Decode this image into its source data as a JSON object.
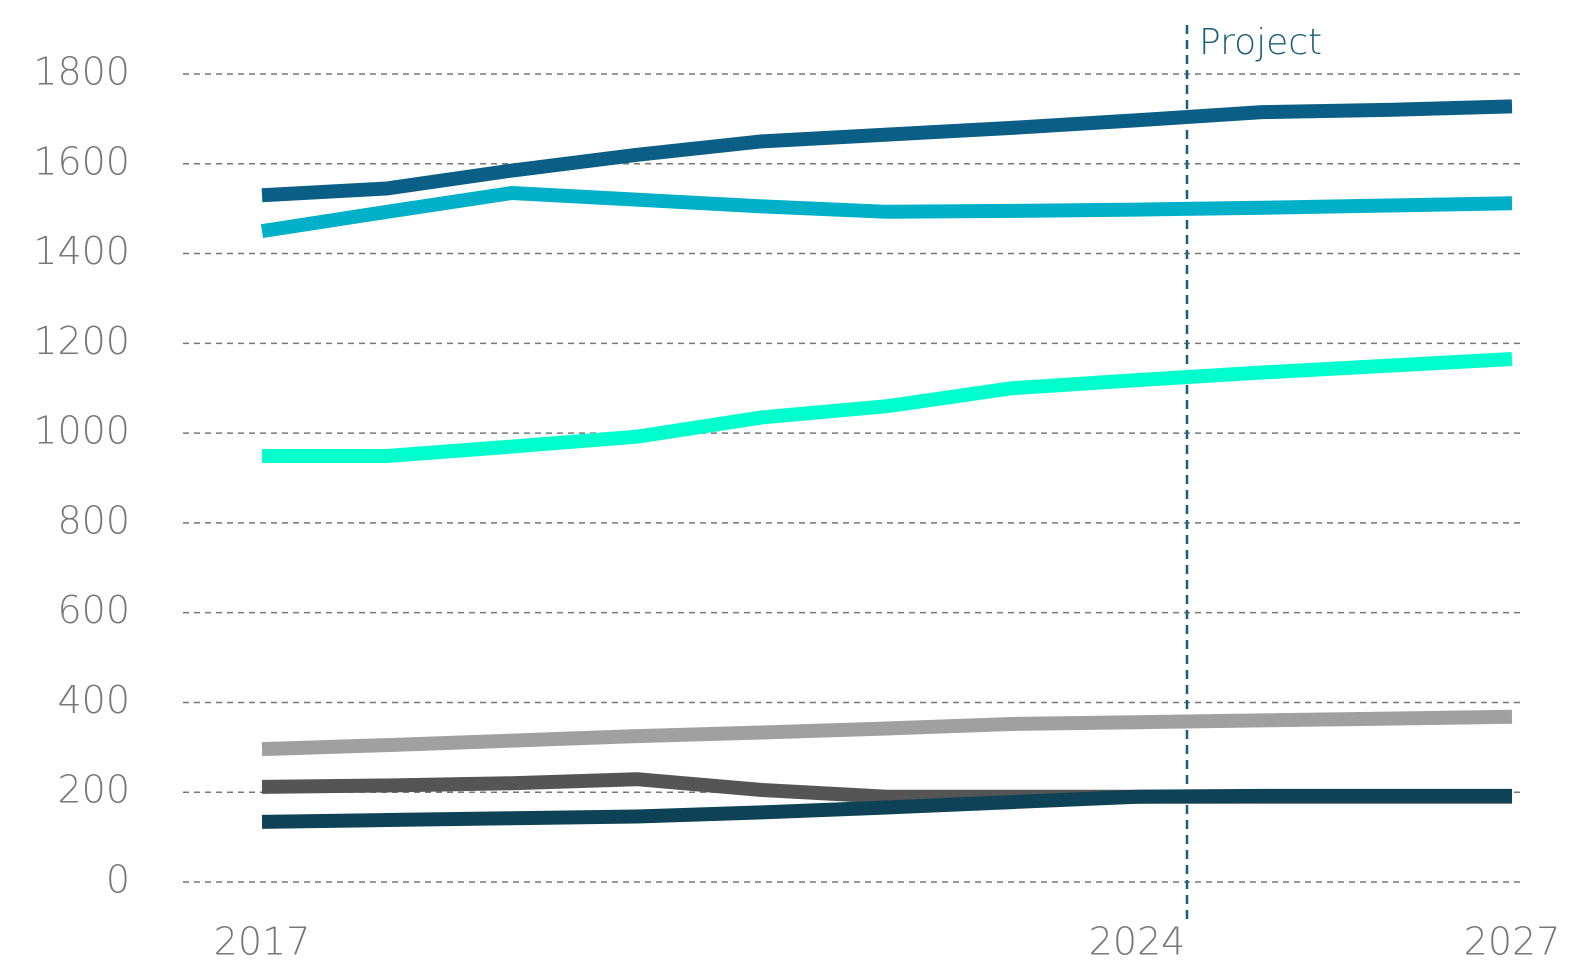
{
  "chart_data": {
    "type": "line",
    "x": [
      2017,
      2018,
      2019,
      2020,
      2021,
      2022,
      2023,
      2024,
      2025,
      2026,
      2027
    ],
    "xlim": [
      2017,
      2027
    ],
    "xticks": [
      2017,
      2024,
      2027
    ],
    "ylim": [
      0,
      1800
    ],
    "yticks": [
      0,
      200,
      400,
      600,
      800,
      1000,
      1200,
      1400,
      1600,
      1800
    ],
    "grid": true,
    "annotations": [
      {
        "text": "Project",
        "x": 2024.4
      }
    ],
    "series": [
      {
        "color": "#0b5e85",
        "values": [
          1530,
          1545,
          1585,
          1620,
          1650,
          1665,
          1680,
          1697,
          1715,
          1720,
          1728
        ]
      },
      {
        "color": "#00b0c8",
        "values": [
          1450,
          1493,
          1535,
          1520,
          1505,
          1493,
          1495,
          1498,
          1502,
          1507,
          1512
        ]
      },
      {
        "color": "#00ffcc",
        "values": [
          949,
          949,
          970,
          992,
          1035,
          1060,
          1100,
          1118,
          1135,
          1150,
          1165
        ]
      },
      {
        "color": "#a0a0a0",
        "values": [
          296,
          305,
          315,
          325,
          333,
          342,
          352,
          356,
          360,
          364,
          368
        ]
      },
      {
        "color": "#555555",
        "values": [
          212,
          215,
          220,
          229,
          205,
          190,
          190,
          190,
          190,
          190,
          190
        ]
      },
      {
        "color": "#0e4256",
        "values": [
          134,
          138,
          142,
          146,
          155,
          166,
          178,
          190,
          192,
          192,
          192
        ]
      }
    ]
  }
}
